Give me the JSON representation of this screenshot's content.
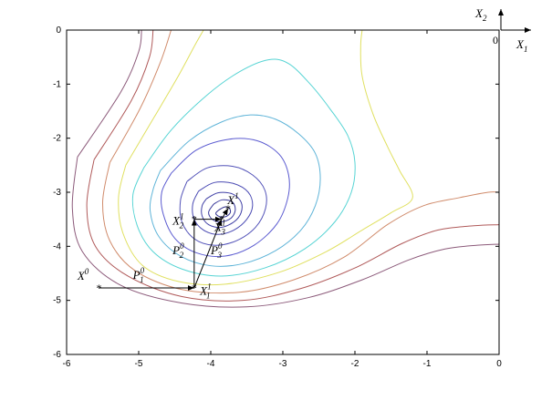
{
  "chart_data": {
    "type": "contour",
    "title": "",
    "xlabel": "",
    "ylabel": "",
    "xlim": [
      -6,
      0
    ],
    "ylim": [
      -6,
      0
    ],
    "x_ticks": [
      -6,
      -5,
      -4,
      -3,
      -2,
      -1,
      0
    ],
    "y_ticks": [
      0,
      -1,
      -2,
      -3,
      -4,
      -5,
      -6
    ],
    "x_tick_labels": [
      "-6",
      "-5",
      "-4",
      "-3",
      "-2",
      "-1",
      "0"
    ],
    "y_tick_labels": [
      "0",
      "-1",
      "-2",
      "-3",
      "-4",
      "-5",
      "-6"
    ],
    "grid": false,
    "contours": [
      {
        "level": 1,
        "color": "#2f2f8f",
        "points": [
          [
            -3.88,
            -3.32
          ],
          [
            -3.8,
            -3.27
          ],
          [
            -3.74,
            -3.3
          ],
          [
            -3.73,
            -3.38
          ],
          [
            -3.79,
            -3.45
          ],
          [
            -3.88,
            -3.45
          ],
          [
            -3.93,
            -3.39
          ],
          [
            -3.88,
            -3.32
          ]
        ]
      },
      {
        "level": 2,
        "color": "#3a3a9a",
        "points": [
          [
            -3.96,
            -3.22
          ],
          [
            -3.84,
            -3.14
          ],
          [
            -3.7,
            -3.18
          ],
          [
            -3.66,
            -3.33
          ],
          [
            -3.72,
            -3.48
          ],
          [
            -3.86,
            -3.55
          ],
          [
            -3.98,
            -3.5
          ],
          [
            -4.03,
            -3.37
          ],
          [
            -3.96,
            -3.22
          ]
        ]
      },
      {
        "level": 3,
        "color": "#4040a6",
        "points": [
          [
            -4.06,
            -3.12
          ],
          [
            -3.9,
            -3.01
          ],
          [
            -3.7,
            -3.03
          ],
          [
            -3.58,
            -3.18
          ],
          [
            -3.58,
            -3.38
          ],
          [
            -3.68,
            -3.55
          ],
          [
            -3.86,
            -3.65
          ],
          [
            -4.03,
            -3.6
          ],
          [
            -4.12,
            -3.44
          ],
          [
            -4.12,
            -3.25
          ],
          [
            -4.06,
            -3.12
          ]
        ]
      },
      {
        "level": 4,
        "color": "#4a4ab3",
        "points": [
          [
            -4.17,
            -2.98
          ],
          [
            -3.95,
            -2.82
          ],
          [
            -3.68,
            -2.84
          ],
          [
            -3.48,
            -3.0
          ],
          [
            -3.42,
            -3.25
          ],
          [
            -3.5,
            -3.5
          ],
          [
            -3.68,
            -3.7
          ],
          [
            -3.9,
            -3.78
          ],
          [
            -4.1,
            -3.7
          ],
          [
            -4.23,
            -3.5
          ],
          [
            -4.25,
            -3.22
          ],
          [
            -4.17,
            -2.98
          ]
        ]
      },
      {
        "level": 5,
        "color": "#5252b8",
        "points": [
          [
            -4.33,
            -2.8
          ],
          [
            -4.05,
            -2.55
          ],
          [
            -3.7,
            -2.52
          ],
          [
            -3.42,
            -2.68
          ],
          [
            -3.25,
            -2.96
          ],
          [
            -3.24,
            -3.3
          ],
          [
            -3.38,
            -3.65
          ],
          [
            -3.65,
            -3.9
          ],
          [
            -3.96,
            -3.98
          ],
          [
            -4.23,
            -3.86
          ],
          [
            -4.4,
            -3.55
          ],
          [
            -4.42,
            -3.15
          ],
          [
            -4.33,
            -2.8
          ]
        ]
      },
      {
        "level": 6,
        "color": "#5a5ad0",
        "points": [
          [
            -4.55,
            -2.65
          ],
          [
            -4.2,
            -2.22
          ],
          [
            -3.75,
            -2.02
          ],
          [
            -3.35,
            -2.05
          ],
          [
            -3.05,
            -2.3
          ],
          [
            -2.92,
            -2.68
          ],
          [
            -2.93,
            -3.1
          ],
          [
            -3.08,
            -3.58
          ],
          [
            -3.4,
            -3.98
          ],
          [
            -3.8,
            -4.18
          ],
          [
            -4.2,
            -4.12
          ],
          [
            -4.5,
            -3.85
          ],
          [
            -4.66,
            -3.4
          ],
          [
            -4.68,
            -3.0
          ],
          [
            -4.55,
            -2.65
          ]
        ]
      },
      {
        "level": 7,
        "color": "#5fb4d8",
        "points": [
          [
            -4.7,
            -2.6
          ],
          [
            -4.3,
            -2.05
          ],
          [
            -3.85,
            -1.7
          ],
          [
            -3.45,
            -1.57
          ],
          [
            -3.1,
            -1.65
          ],
          [
            -2.78,
            -1.92
          ],
          [
            -2.55,
            -2.28
          ],
          [
            -2.48,
            -2.75
          ],
          [
            -2.55,
            -3.25
          ],
          [
            -2.75,
            -3.7
          ],
          [
            -3.1,
            -4.08
          ],
          [
            -3.55,
            -4.32
          ],
          [
            -4.0,
            -4.36
          ],
          [
            -4.42,
            -4.18
          ],
          [
            -4.72,
            -3.82
          ],
          [
            -4.84,
            -3.35
          ],
          [
            -4.8,
            -2.95
          ],
          [
            -4.7,
            -2.6
          ]
        ]
      },
      {
        "level": 8,
        "color": "#57d4d4",
        "points": [
          [
            -4.93,
            -2.55
          ],
          [
            -4.55,
            -1.85
          ],
          [
            -4.05,
            -1.2
          ],
          [
            -3.6,
            -0.77
          ],
          [
            -3.2,
            -0.55
          ],
          [
            -2.92,
            -0.62
          ],
          [
            -2.62,
            -1.0
          ],
          [
            -2.35,
            -1.45
          ],
          [
            -2.1,
            -1.95
          ],
          [
            -2.0,
            -2.45
          ],
          [
            -2.05,
            -3.0
          ],
          [
            -2.28,
            -3.55
          ],
          [
            -2.7,
            -4.05
          ],
          [
            -3.25,
            -4.4
          ],
          [
            -3.85,
            -4.55
          ],
          [
            -4.4,
            -4.42
          ],
          [
            -4.8,
            -4.1
          ],
          [
            -5.02,
            -3.62
          ],
          [
            -5.08,
            -3.05
          ],
          [
            -4.93,
            -2.55
          ]
        ]
      },
      {
        "level": 9,
        "color": "#e0e060",
        "points": [
          [
            -5.18,
            -2.5
          ],
          [
            -4.78,
            -1.6
          ],
          [
            -4.45,
            -0.85
          ],
          [
            -4.22,
            -0.28
          ],
          [
            -4.1,
            0.0
          ]
        ],
        "points2": [
          [
            -5.18,
            -2.5
          ],
          [
            -5.28,
            -3.1
          ],
          [
            -5.22,
            -3.75
          ],
          [
            -4.95,
            -4.35
          ],
          [
            -4.45,
            -4.65
          ],
          [
            -3.8,
            -4.7
          ],
          [
            -3.05,
            -4.48
          ],
          [
            -2.4,
            -4.1
          ],
          [
            -1.9,
            -3.7
          ],
          [
            -1.5,
            -3.38
          ],
          [
            -1.2,
            -3.1
          ],
          [
            -1.38,
            -2.6
          ],
          [
            -1.55,
            -2.15
          ],
          [
            -1.75,
            -1.55
          ],
          [
            -1.9,
            -0.85
          ],
          [
            -1.92,
            -0.3
          ],
          [
            -1.9,
            0.0
          ]
        ]
      },
      {
        "level": 10,
        "color": "#d08b6b",
        "points": [
          [
            -5.4,
            -2.45
          ],
          [
            -4.98,
            -1.45
          ],
          [
            -4.7,
            -0.6
          ],
          [
            -4.55,
            0.0
          ]
        ],
        "points2": [
          [
            -5.4,
            -2.45
          ],
          [
            -5.5,
            -3.2
          ],
          [
            -5.4,
            -3.9
          ],
          [
            -5.05,
            -4.45
          ],
          [
            -4.4,
            -4.8
          ],
          [
            -3.6,
            -4.85
          ],
          [
            -2.85,
            -4.62
          ],
          [
            -2.15,
            -4.2
          ],
          [
            -1.55,
            -3.6
          ],
          [
            -1.05,
            -3.25
          ],
          [
            -0.55,
            -3.1
          ],
          [
            -0.15,
            -3.0
          ],
          [
            0.0,
            -3.0
          ]
        ]
      },
      {
        "level": 11,
        "color": "#b05a5a",
        "points": [
          [
            -5.62,
            -2.4
          ],
          [
            -5.1,
            -1.3
          ],
          [
            -4.85,
            -0.5
          ],
          [
            -4.8,
            0.0
          ]
        ],
        "points2": [
          [
            -5.62,
            -2.4
          ],
          [
            -5.72,
            -3.25
          ],
          [
            -5.6,
            -4.0
          ],
          [
            -5.15,
            -4.55
          ],
          [
            -4.4,
            -4.93
          ],
          [
            -3.55,
            -5.0
          ],
          [
            -2.75,
            -4.78
          ],
          [
            -2.0,
            -4.4
          ],
          [
            -1.35,
            -3.95
          ],
          [
            -0.85,
            -3.7
          ],
          [
            -0.35,
            -3.62
          ],
          [
            0.0,
            -3.6
          ]
        ]
      },
      {
        "level": 12,
        "color": "#8c5a7a",
        "points": [
          [
            -5.85,
            -2.35
          ],
          [
            -5.25,
            -1.15
          ],
          [
            -5.0,
            -0.4
          ],
          [
            -4.96,
            0.0
          ]
        ],
        "points2": [
          [
            -5.85,
            -2.35
          ],
          [
            -5.92,
            -3.3
          ],
          [
            -5.78,
            -4.1
          ],
          [
            -5.25,
            -4.72
          ],
          [
            -4.4,
            -5.05
          ],
          [
            -3.5,
            -5.12
          ],
          [
            -2.65,
            -4.95
          ],
          [
            -1.9,
            -4.62
          ],
          [
            -1.25,
            -4.25
          ],
          [
            -0.75,
            -4.05
          ],
          [
            -0.3,
            -3.98
          ],
          [
            0.0,
            -3.96
          ]
        ]
      }
    ],
    "path_segments": [
      {
        "from": [
          -5.55,
          -4.77
        ],
        "to": [
          -4.23,
          -4.77
        ],
        "arrow": true
      },
      {
        "from": [
          -4.23,
          -4.77
        ],
        "to": [
          -4.23,
          -3.5
        ],
        "arrow": true
      },
      {
        "from": [
          -4.23,
          -3.5
        ],
        "to": [
          -3.85,
          -3.5
        ],
        "arrow": true
      },
      {
        "from": [
          -4.23,
          -4.77
        ],
        "to": [
          -3.85,
          -3.5
        ],
        "arrow": true
      },
      {
        "from": [
          -3.85,
          -3.5
        ],
        "to": [
          -3.76,
          -3.3
        ],
        "arrow": true
      }
    ],
    "points": [
      {
        "id": "X0",
        "base": "X",
        "sup": "0",
        "sub": "",
        "x": -5.55,
        "y": -4.77
      },
      {
        "id": "X1_1",
        "base": "X",
        "sup": "1",
        "sub": "1",
        "x": -4.23,
        "y": -4.77
      },
      {
        "id": "X2_1",
        "base": "X",
        "sup": "1",
        "sub": "2",
        "x": -4.23,
        "y": -3.5
      },
      {
        "id": "X3_1",
        "base": "X",
        "sup": "1",
        "sub": "3",
        "x": -3.85,
        "y": -3.5
      },
      {
        "id": "X1",
        "base": "X",
        "sup": "1",
        "sub": "",
        "x": -3.76,
        "y": -3.3
      }
    ],
    "annotations": [
      {
        "id": "P1_0",
        "base": "P",
        "sup": "0",
        "sub": "1",
        "x": -5.08,
        "y": -4.6
      },
      {
        "id": "P2_0",
        "base": "P",
        "sup": "0",
        "sub": "2",
        "x": -4.53,
        "y": -4.15
      },
      {
        "id": "P3_0",
        "base": "P",
        "sup": "0",
        "sub": "3",
        "x": -4.0,
        "y": -4.15
      }
    ],
    "point_labels": [
      {
        "id": "X0",
        "base": "X",
        "sup": "0",
        "sub": "",
        "x": -5.85,
        "y": -4.62
      },
      {
        "id": "X1_1",
        "base": "X",
        "sup": "1",
        "sub": "1",
        "x": -4.15,
        "y": -4.9
      },
      {
        "id": "X2_1",
        "base": "X",
        "sup": "1",
        "sub": "2",
        "x": -4.53,
        "y": -3.6
      },
      {
        "id": "X3_1",
        "base": "X",
        "sup": "1",
        "sub": "3",
        "x": -3.95,
        "y": -3.72
      },
      {
        "id": "X1",
        "base": "X",
        "sup": "1",
        "sub": "",
        "x": -3.77,
        "y": -3.22
      }
    ],
    "inset_axes": {
      "origin_label": "0",
      "x_axis_label": {
        "base": "X",
        "sub": "1"
      },
      "y_axis_label": {
        "base": "X",
        "sub": "2"
      }
    }
  }
}
